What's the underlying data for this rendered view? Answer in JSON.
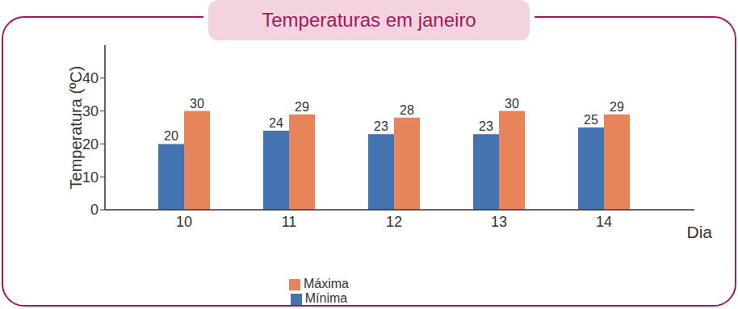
{
  "chart_data": {
    "type": "bar",
    "title": "Temperaturas em janeiro",
    "x_label": "Dia",
    "y_label": "Temperatura (ºC)",
    "categories": [
      "10",
      "11",
      "12",
      "13",
      "14"
    ],
    "series": [
      {
        "name": "Mínima",
        "color": "#4473b1",
        "values": [
          20,
          24,
          23,
          23,
          25
        ]
      },
      {
        "name": "Máxima",
        "color": "#e8845a",
        "values": [
          30,
          29,
          28,
          30,
          29
        ]
      }
    ],
    "ylim": [
      0,
      50
    ],
    "yticks": [
      0,
      10,
      20,
      30,
      40
    ],
    "grid": false,
    "legend": "bottom",
    "data_labels": true
  }
}
